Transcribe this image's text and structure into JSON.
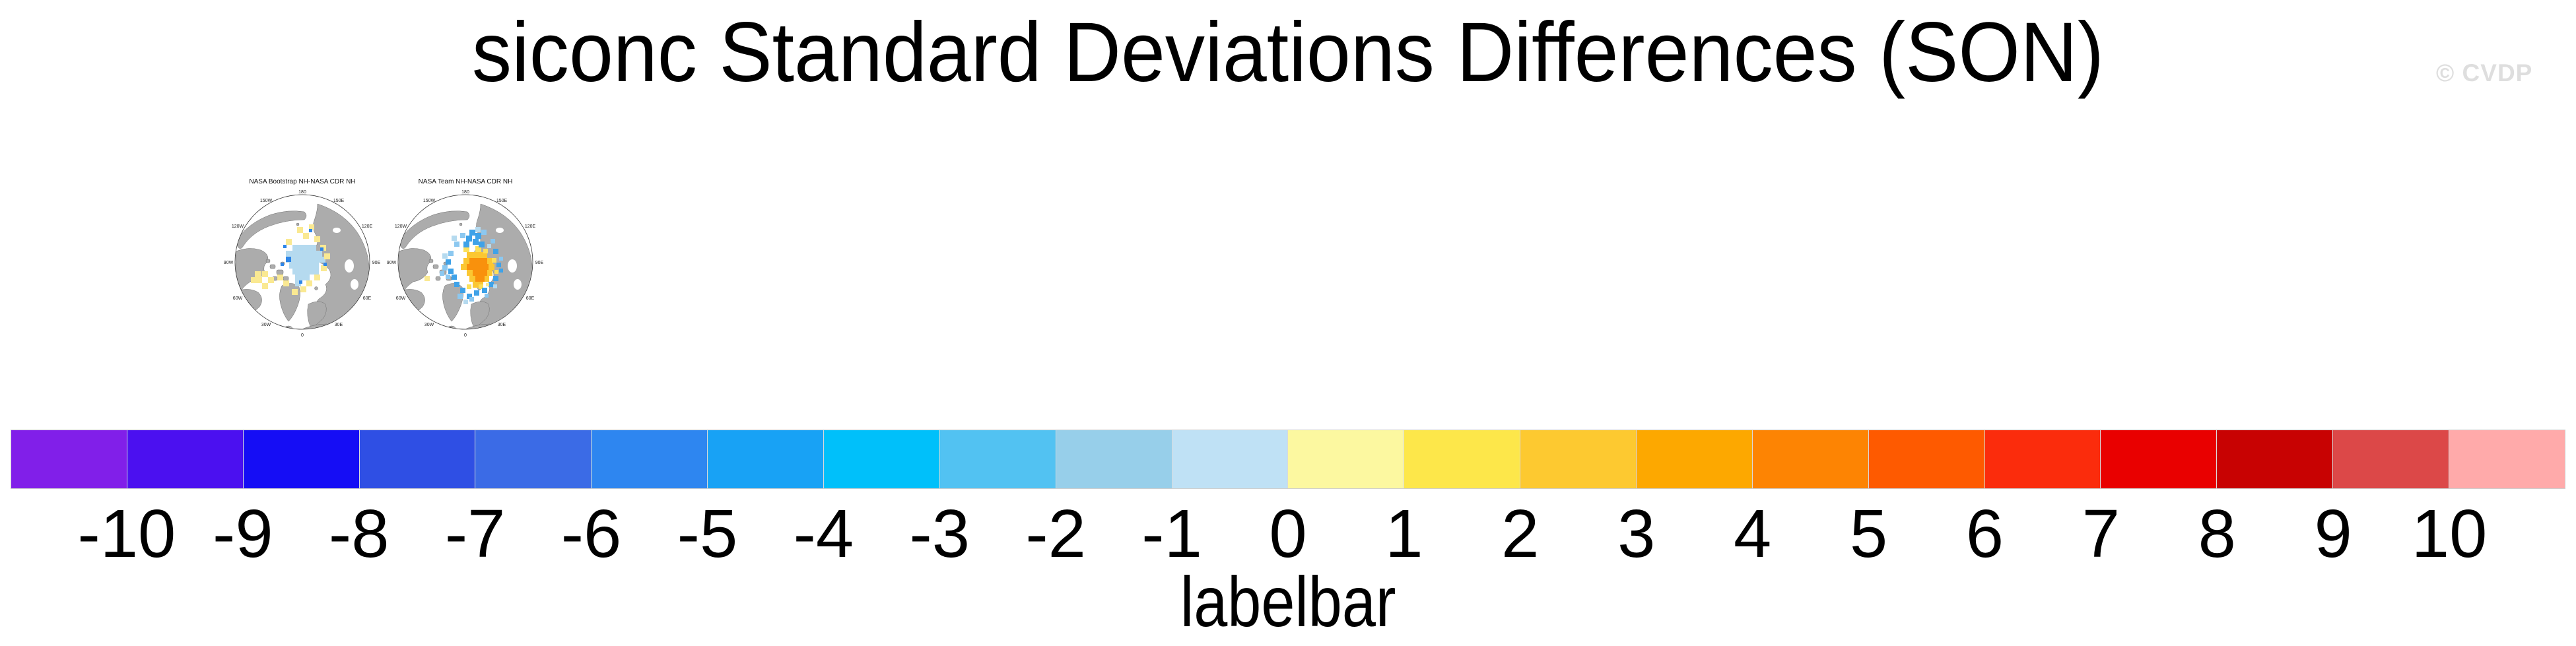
{
  "header": {
    "title": "siconc Standard Deviations Differences (SON)",
    "watermark": "© CVDP"
  },
  "maps": {
    "panel1": {
      "title": "NASA Bootstrap NH-NASA CDR NH"
    },
    "panel2": {
      "title": "NASA Team NH-NASA CDR NH"
    },
    "lon_labels": [
      "180",
      "150W",
      "150E",
      "120W",
      "120E",
      "90W",
      "90E",
      "60W",
      "60E",
      "30W",
      "30E",
      "0"
    ]
  },
  "colorbar": {
    "label": "labelbar",
    "tick_labels": [
      "-10",
      "-9",
      "-8",
      "-7",
      "-6",
      "-5",
      "-4",
      "-3",
      "-2",
      "-1",
      "0",
      "1",
      "2",
      "3",
      "4",
      "5",
      "6",
      "7",
      "8",
      "9",
      "10"
    ],
    "colors": [
      "#811FE9",
      "#4B10F0",
      "#150DF5",
      "#2F4FE4",
      "#3B6BE6",
      "#2E86F0",
      "#18A2F5",
      "#00C0FA",
      "#52C2F2",
      "#97CFEA",
      "#BFE1F5",
      "#FCF8A0",
      "#FDE74A",
      "#FDC930",
      "#FDA800",
      "#FD8403",
      "#FE5A00",
      "#FB2C0C",
      "#E90000",
      "#C80202",
      "#DC4848",
      "#FFAAAA"
    ]
  },
  "chart_data": {
    "type": "heatmap",
    "title": "siconc Standard Deviations Differences (SON)",
    "colorbar": {
      "label": "labelbar",
      "ticks": [
        -10,
        -9,
        -8,
        -7,
        -6,
        -5,
        -4,
        -3,
        -2,
        -1,
        0,
        1,
        2,
        3,
        4,
        5,
        6,
        7,
        8,
        9,
        10
      ],
      "n_segments": 22,
      "colors": [
        "#811FE9",
        "#4B10F0",
        "#150DF5",
        "#2F4FE4",
        "#3B6BE6",
        "#2E86F0",
        "#18A2F5",
        "#00C0FA",
        "#52C2F2",
        "#97CFEA",
        "#BFE1F5",
        "#FCF8A0",
        "#FDE74A",
        "#FDC930",
        "#FDA800",
        "#FD8403",
        "#FE5A00",
        "#FB2C0C",
        "#E90000",
        "#C80202",
        "#DC4848",
        "#FFAAAA"
      ]
    },
    "palette": {
      "lblue": "#B5DAEF",
      "yellow": "#FAE992",
      "dblue": "#2E86E8",
      "mblue": "#3FA2E8",
      "sblue": "#8CC8F0",
      "orange": "#F9910C",
      "gold": "#FBC732",
      "gold2": "#FCE05A"
    },
    "panels": [
      {
        "title": "NASA Bootstrap NH-NASA CDR NH",
        "projection": "north polar stereographic",
        "summary": "weak light-blue (about -1) differences over central Arctic Ocean with scattered pale-yellow (about +1) cells around the margins and Canadian Archipelago",
        "cells": [
          [
            110,
            86,
            36,
            9,
            "lblue"
          ],
          [
            100,
            95,
            55,
            9,
            "lblue"
          ],
          [
            100,
            104,
            60,
            9,
            "lblue"
          ],
          [
            105,
            113,
            45,
            9,
            "lblue"
          ],
          [
            110,
            122,
            40,
            9,
            "lblue"
          ],
          [
            114,
            131,
            22,
            9,
            "lblue"
          ],
          [
            114,
            140,
            9,
            9,
            "lblue"
          ],
          [
            126,
            68,
            9,
            9,
            "yellow"
          ],
          [
            143,
            73,
            9,
            9,
            "yellow"
          ],
          [
            152,
            86,
            9,
            9,
            "yellow"
          ],
          [
            158,
            99,
            9,
            9,
            "yellow"
          ],
          [
            153,
            117,
            9,
            9,
            "yellow"
          ],
          [
            143,
            131,
            9,
            9,
            "yellow"
          ],
          [
            131,
            140,
            9,
            9,
            "yellow"
          ],
          [
            122,
            149,
            9,
            9,
            "yellow"
          ],
          [
            109,
            153,
            9,
            9,
            "yellow"
          ],
          [
            96,
            140,
            9,
            9,
            "yellow"
          ],
          [
            87,
            131,
            9,
            9,
            "yellow"
          ],
          [
            64,
            126,
            9,
            9,
            "yellow"
          ],
          [
            55,
            135,
            9,
            9,
            "yellow"
          ],
          [
            64,
            144,
            9,
            9,
            "yellow"
          ],
          [
            73,
            135,
            9,
            9,
            "yellow"
          ],
          [
            117,
            59,
            9,
            9,
            "yellow"
          ],
          [
            135,
            55,
            8,
            8,
            "yellow"
          ],
          [
            100,
            77,
            9,
            9,
            "yellow"
          ],
          [
            53,
            126,
            10,
            9,
            "yellow"
          ],
          [
            47,
            135,
            10,
            9,
            "yellow"
          ],
          [
            100,
            104,
            8,
            8,
            "dblue"
          ],
          [
            152,
            90,
            5,
            5,
            "dblue"
          ],
          [
            157,
            113,
            5,
            5,
            "dblue"
          ],
          [
            92,
            113,
            5,
            5,
            "dblue"
          ],
          [
            120,
            140,
            5,
            5,
            "dblue"
          ],
          [
            135,
            62,
            5,
            5,
            "dblue"
          ],
          [
            96,
            86,
            5,
            5,
            "dblue"
          ]
        ]
      },
      {
        "title": "NASA Team NH-NASA CDR NH",
        "projection": "north polar stereographic",
        "summary": "orange core (about +4 to +5) near the pole ringed by golden yellow (+2 to +3) and surrounded by blue cells (about -1 to -3)",
        "cells": [
          [
            131,
            106,
            27,
            9,
            "orange"
          ],
          [
            127,
            115,
            33,
            9,
            "orange"
          ],
          [
            136,
            124,
            22,
            9,
            "orange"
          ],
          [
            140,
            133,
            14,
            9,
            "orange"
          ],
          [
            127,
            97,
            31,
            9,
            "gold"
          ],
          [
            122,
            106,
            9,
            9,
            "gold"
          ],
          [
            158,
            106,
            9,
            9,
            "gold"
          ],
          [
            118,
            115,
            9,
            9,
            "gold"
          ],
          [
            160,
            115,
            9,
            9,
            "gold"
          ],
          [
            127,
            124,
            9,
            9,
            "gold"
          ],
          [
            158,
            124,
            8,
            9,
            "gold"
          ],
          [
            131,
            133,
            9,
            9,
            "gold"
          ],
          [
            154,
            133,
            7,
            9,
            "gold"
          ],
          [
            136,
            142,
            16,
            9,
            "gold"
          ],
          [
            122,
            88,
            9,
            9,
            "gold2"
          ],
          [
            140,
            88,
            9,
            9,
            "gold2"
          ],
          [
            152,
            92,
            7,
            7,
            "gold2"
          ],
          [
            165,
            106,
            7,
            7,
            "gold2"
          ],
          [
            169,
            124,
            6,
            6,
            "gold2"
          ],
          [
            145,
            146,
            7,
            7,
            "gold2"
          ],
          [
            127,
            146,
            7,
            7,
            "gold2"
          ],
          [
            131,
            63,
            9,
            9,
            "mblue"
          ],
          [
            140,
            68,
            9,
            9,
            "mblue"
          ],
          [
            126,
            72,
            9,
            9,
            "mblue"
          ],
          [
            136,
            77,
            9,
            9,
            "mblue"
          ],
          [
            145,
            81,
            9,
            9,
            "mblue"
          ],
          [
            122,
            81,
            9,
            9,
            "mblue"
          ],
          [
            167,
            92,
            8,
            8,
            "mblue"
          ],
          [
            172,
            113,
            7,
            7,
            "mblue"
          ],
          [
            176,
            122,
            6,
            6,
            "mblue"
          ],
          [
            167,
            133,
            8,
            8,
            "mblue"
          ],
          [
            160,
            142,
            8,
            8,
            "mblue"
          ],
          [
            150,
            151,
            8,
            8,
            "mblue"
          ],
          [
            138,
            155,
            8,
            8,
            "mblue"
          ],
          [
            127,
            160,
            8,
            8,
            "mblue"
          ],
          [
            117,
            151,
            8,
            8,
            "mblue"
          ],
          [
            108,
            142,
            8,
            8,
            "mblue"
          ],
          [
            104,
            131,
            8,
            8,
            "mblue"
          ],
          [
            99,
            122,
            8,
            8,
            "mblue"
          ],
          [
            95,
            108,
            8,
            8,
            "mblue"
          ],
          [
            149,
            63,
            8,
            8,
            "sblue"
          ],
          [
            117,
            68,
            8,
            8,
            "sblue"
          ],
          [
            108,
            81,
            8,
            8,
            "sblue"
          ],
          [
            99,
            95,
            8,
            8,
            "sblue"
          ],
          [
            90,
            117,
            8,
            8,
            "sblue"
          ],
          [
            86,
            126,
            7,
            7,
            "sblue"
          ],
          [
            113,
            160,
            8,
            8,
            "sblue"
          ],
          [
            131,
            165,
            7,
            7,
            "sblue"
          ],
          [
            154,
            160,
            6,
            6,
            "sblue"
          ],
          [
            176,
            104,
            6,
            6,
            "sblue"
          ],
          [
            163,
            77,
            7,
            7,
            "sblue"
          ],
          [
            95,
            131,
            7,
            7,
            "sblue"
          ],
          [
            140,
            59,
            8,
            8,
            "lblue"
          ],
          [
            104,
            72,
            8,
            8,
            "lblue"
          ],
          [
            90,
            99,
            8,
            8,
            "lblue"
          ],
          [
            167,
            146,
            6,
            6,
            "lblue"
          ],
          [
            122,
            169,
            7,
            7,
            "lblue"
          ],
          [
            158,
            85,
            6,
            6,
            "lblue"
          ],
          [
            63,
            133,
            8,
            8,
            "yellow"
          ],
          [
            156,
            144,
            5,
            5,
            "yellow"
          ]
        ]
      }
    ]
  }
}
